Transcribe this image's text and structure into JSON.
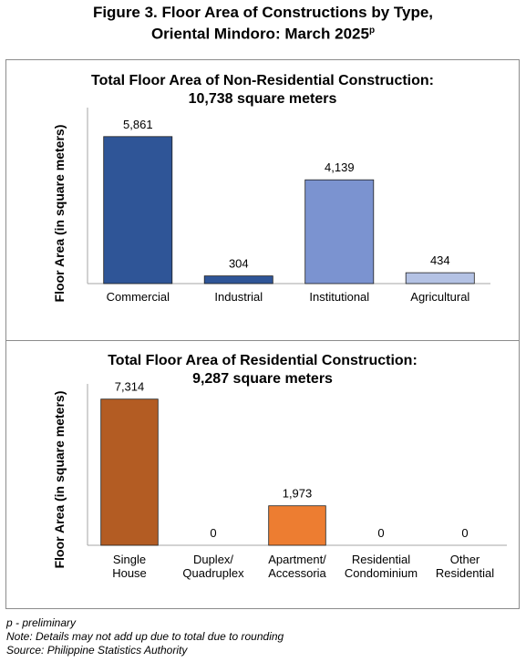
{
  "figure": {
    "title_line1": "Figure 3. Floor Area of Constructions by Type,",
    "title_line2": "Oriental Mindoro: March 2025",
    "title_sup": "p"
  },
  "chart_data": [
    {
      "type": "bar",
      "title_line1": "Total Floor Area of Non-Residential Construction:",
      "title_line2": "10,738 square meters",
      "ylabel": "Floor Area (in square meters)",
      "ylim": [
        0,
        6800
      ],
      "categories": [
        [
          "Commercial"
        ],
        [
          "Industrial"
        ],
        [
          "Institutional"
        ],
        [
          "Agricultural"
        ]
      ],
      "values": [
        5861,
        304,
        4139,
        434
      ],
      "labels": [
        "5,861",
        "304",
        "4,139",
        "434"
      ],
      "colors": [
        "#2f5597",
        "#2f5597",
        "#7b93d0",
        "#b4c2e4"
      ]
    },
    {
      "type": "bar",
      "title_line1": "Total Floor Area of Residential Construction:",
      "title_line2": "9,287 square meters",
      "ylabel": "Floor Area (in square meters)",
      "ylim": [
        0,
        7800
      ],
      "categories": [
        [
          "Single",
          "House"
        ],
        [
          "Duplex/",
          "Quadruplex"
        ],
        [
          "Apartment/",
          "Accessoria"
        ],
        [
          "Residential",
          "Condominium"
        ],
        [
          "Other",
          "Residential"
        ]
      ],
      "values": [
        7314,
        0,
        1973,
        0,
        0
      ],
      "labels": [
        "7,314",
        "0",
        "1,973",
        "0",
        "0"
      ],
      "colors": [
        "#b35c23",
        "#b35c23",
        "#ed7d31",
        "#ed7d31",
        "#ed7d31"
      ]
    }
  ],
  "footnotes": {
    "p": "p - preliminary",
    "note": "Note: Details may not add up due to total due to rounding",
    "source": "Source: Philippine Statistics Authority"
  }
}
